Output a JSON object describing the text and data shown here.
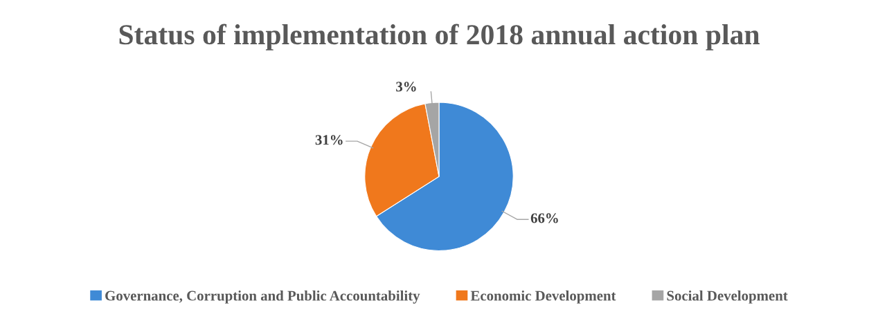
{
  "chart_data": {
    "type": "pie",
    "title": "Status of implementation of 2018 annual action plan",
    "categories": [
      "Governance, Corruption and Public Accountability",
      "Economic Development",
      "Social Development"
    ],
    "values": [
      66,
      31,
      3
    ],
    "colors": [
      "#3f8ad6",
      "#f0781c",
      "#a5a5a5"
    ],
    "value_labels": [
      "66%",
      "31%",
      "3%"
    ],
    "legend": "bottom"
  }
}
